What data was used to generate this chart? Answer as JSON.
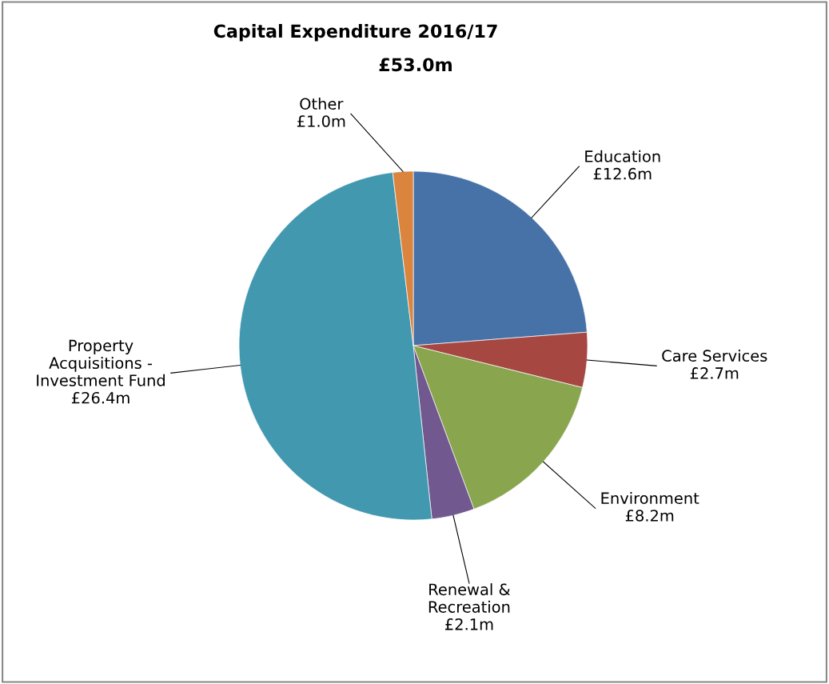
{
  "chart_data": {
    "type": "pie",
    "title": "Capital Expenditure 2016/17",
    "subtitle": "£53.0m",
    "categories": [
      "Education",
      "Care Services",
      "Environment",
      "Renewal &\nRecreation",
      "Property\nAcquisitions -\nInvestment Fund",
      "Other"
    ],
    "values": [
      12.6,
      2.7,
      8.2,
      2.1,
      26.4,
      1.0
    ],
    "value_labels": [
      "£12.6m",
      "£2.7m",
      "£8.2m",
      "£2.1m",
      "£26.4m",
      "£1.0m"
    ],
    "colors": [
      "#4672a8",
      "#a64742",
      "#89a54e",
      "#71588f",
      "#4198af",
      "#db843d"
    ],
    "legend": false
  }
}
